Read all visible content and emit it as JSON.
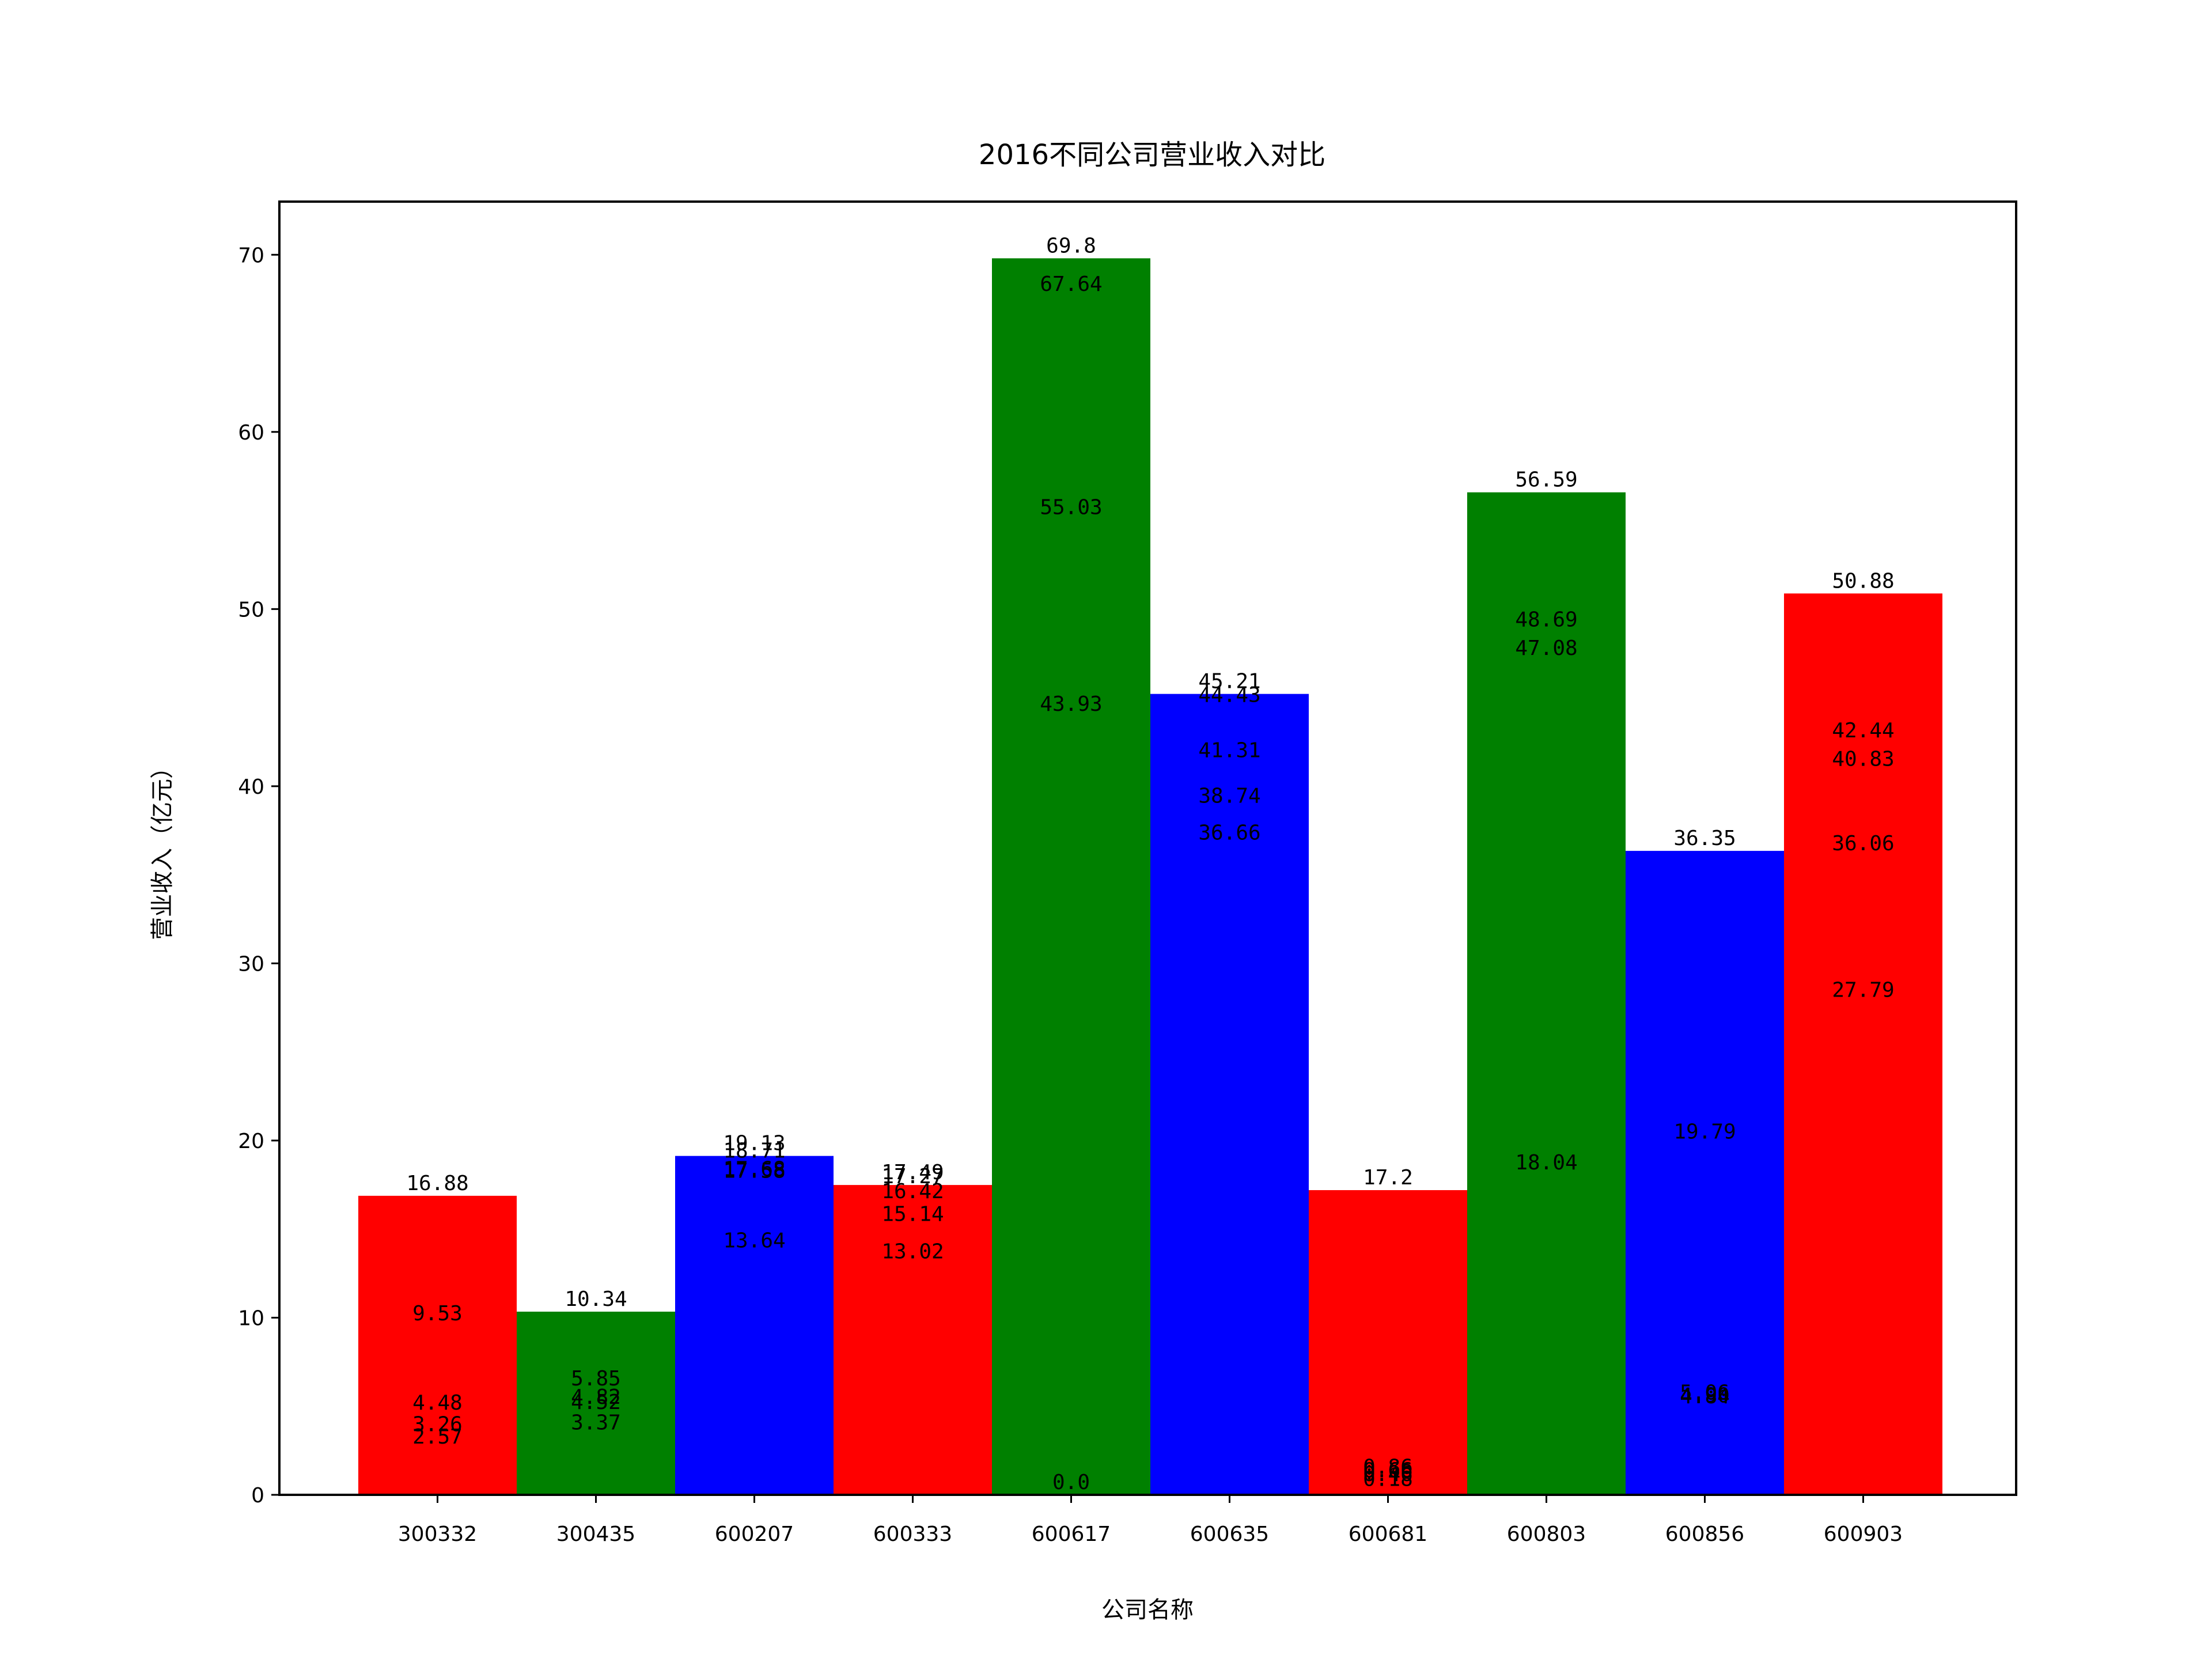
{
  "chart_data": {
    "type": "bar",
    "title": "2016不同公司营业收入对比",
    "xlabel": "公司名称",
    "ylabel": "营业收入（亿元）",
    "ylim": [
      0,
      73
    ],
    "yticks": [
      "0",
      "10",
      "20",
      "30",
      "40",
      "50",
      "60",
      "70"
    ],
    "grid": false,
    "categories": [
      "300332",
      "300435",
      "600207",
      "600333",
      "600617",
      "600635",
      "600681",
      "600803",
      "600856",
      "600903"
    ],
    "colors": [
      "#ff0000",
      "#008000",
      "#0000ff",
      "#ff0000",
      "#008000",
      "#0000ff",
      "#ff0000",
      "#008000",
      "#0000ff",
      "#ff0000"
    ],
    "values": [
      16.88,
      10.34,
      19.13,
      17.49,
      69.8,
      45.21,
      17.2,
      56.59,
      36.35,
      50.88
    ],
    "value_labels": [
      [
        "16.88",
        "9.53",
        "4.48",
        "3.26",
        "2.57"
      ],
      [
        "10.34",
        "5.85",
        "4.82",
        "4.52",
        "3.37"
      ],
      [
        "19.13",
        "18.71",
        "17.68",
        "17.58",
        "13.64"
      ],
      [
        "17.49",
        "17.27",
        "16.42",
        "15.14",
        "13.02"
      ],
      [
        "69.8",
        "67.64",
        "55.03",
        "43.93",
        "0.0"
      ],
      [
        "45.21",
        "44.43",
        "41.31",
        "38.74",
        "36.66"
      ],
      [
        "17.2",
        "0.86",
        "0.66",
        "0.46",
        "0.18"
      ],
      [
        "56.59",
        "48.69",
        "47.08",
        "18.04"
      ],
      [
        "36.35",
        "19.79",
        "5.06",
        "4.90",
        "4.84"
      ],
      [
        "50.88",
        "42.44",
        "40.83",
        "36.06",
        "27.79"
      ]
    ]
  }
}
